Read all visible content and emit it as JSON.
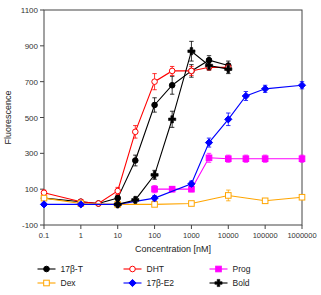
{
  "chart_data": {
    "type": "line",
    "x_label": "Concentration [nM]",
    "y_label": "Fluorescence",
    "log": "x",
    "xlim": [
      0.1,
      1000000
    ],
    "ylim": [
      -100,
      1100
    ],
    "xticks": [
      0.1,
      1,
      10,
      100,
      1000,
      10000,
      100000,
      1000000
    ],
    "yticks": [
      -100,
      100,
      300,
      500,
      700,
      900,
      1100
    ],
    "grid": false,
    "legend": "bottom",
    "series": [
      {
        "name": "17β-T",
        "color": "black",
        "marker": "circle",
        "line_style": "solid",
        "x": [
          0.1,
          1,
          3,
          10,
          30,
          100,
          300,
          1000,
          3000,
          10000
        ],
        "values": [
          50,
          30,
          20,
          50,
          260,
          570,
          680,
          760,
          820,
          790
        ],
        "errors": [
          10,
          8,
          10,
          15,
          30,
          40,
          50,
          35,
          25,
          25
        ]
      },
      {
        "name": "DHT",
        "color": "#ff0000",
        "marker": "open-circle",
        "line_style": "solid",
        "x": [
          0.1,
          1,
          3,
          10,
          30,
          100,
          300,
          1000,
          3000,
          10000
        ],
        "values": [
          80,
          30,
          20,
          90,
          420,
          700,
          760,
          760,
          780,
          780
        ],
        "errors": [
          15,
          8,
          8,
          20,
          35,
          45,
          25,
          25,
          15,
          15
        ]
      },
      {
        "name": "Prog",
        "color": "#ff00ff",
        "marker": "square",
        "line_style": "solid",
        "x": [
          100,
          300,
          1000,
          3000,
          10000,
          30000,
          100000,
          1000000
        ],
        "values": [
          100,
          100,
          100,
          275,
          270,
          270,
          270,
          270
        ],
        "errors": [
          20,
          15,
          15,
          25,
          20,
          20,
          20,
          20
        ]
      },
      {
        "name": "Dex",
        "color": "orange",
        "marker": "open-square",
        "line_style": "solid",
        "x": [
          0.1,
          1,
          10,
          100,
          1000,
          10000,
          100000,
          1000000
        ],
        "values": [
          50,
          20,
          15,
          15,
          20,
          65,
          35,
          55
        ],
        "errors": [
          8,
          8,
          8,
          8,
          8,
          30,
          12,
          12
        ]
      },
      {
        "name": "17β-E2",
        "color": "blue",
        "marker": "diamond",
        "line_style": "solid",
        "x": [
          0.1,
          1,
          10,
          100,
          1000,
          3000,
          10000,
          30000,
          100000,
          1000000
        ],
        "values": [
          15,
          15,
          15,
          50,
          130,
          360,
          490,
          620,
          660,
          680
        ],
        "errors": [
          8,
          8,
          8,
          15,
          15,
          25,
          35,
          25,
          20,
          20
        ]
      },
      {
        "name": "Bold",
        "color": "black",
        "marker": "plus",
        "line_style": "solid",
        "x": [
          10,
          30,
          100,
          300,
          1000,
          3000,
          10000
        ],
        "values": [
          15,
          40,
          180,
          490,
          870,
          790,
          770
        ],
        "errors": [
          10,
          15,
          25,
          45,
          55,
          25,
          25
        ]
      }
    ]
  }
}
